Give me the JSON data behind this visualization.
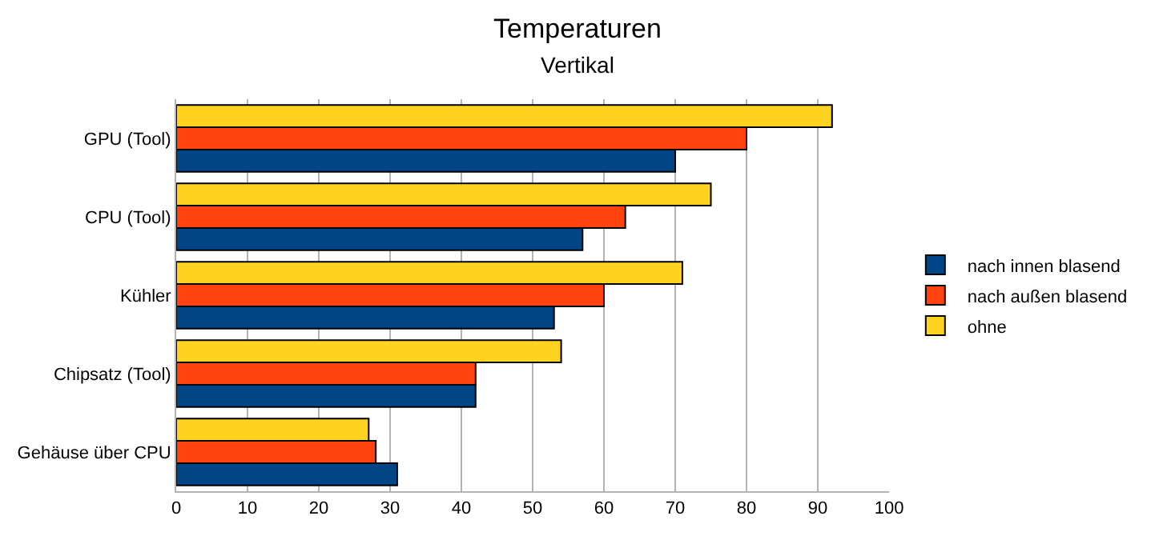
{
  "chart_data": {
    "type": "bar",
    "orientation": "horizontal",
    "title": "Temperaturen",
    "subtitle": "Vertikal",
    "categories": [
      "GPU (Tool)",
      "CPU (Tool)",
      "Kühler",
      "Chipsatz (Tool)",
      "Gehäuse über CPU"
    ],
    "series": [
      {
        "name": "nach innen blasend",
        "color": "#004586",
        "values": [
          70,
          57,
          53,
          42,
          31
        ]
      },
      {
        "name": "nach außen blasend",
        "color": "#ff420e",
        "values": [
          80,
          63,
          60,
          42,
          28
        ]
      },
      {
        "name": "ohne",
        "color": "#ffd320",
        "values": [
          92,
          75,
          71,
          54,
          27
        ]
      }
    ],
    "xlim": [
      0,
      100
    ],
    "xticks": [
      0,
      10,
      20,
      30,
      40,
      50,
      60,
      70,
      80,
      90,
      100
    ],
    "grid": "x",
    "legend": "right"
  }
}
